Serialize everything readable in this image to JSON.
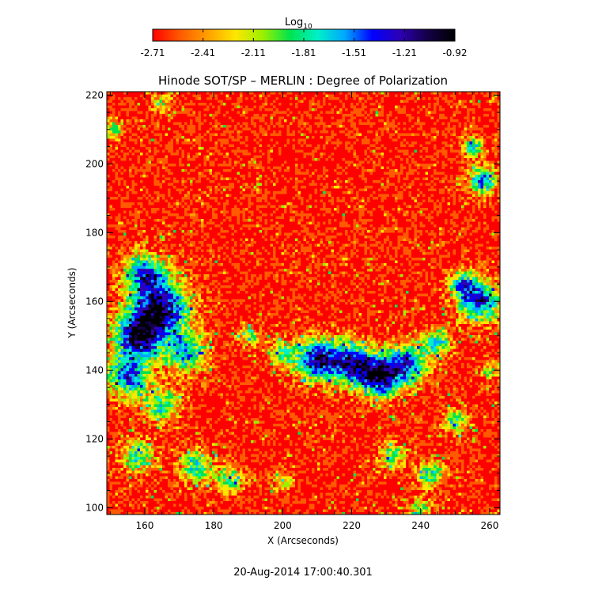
{
  "chart_data": {
    "type": "heatmap",
    "title": "Hinode SOT/SP – MERLIN : Degree of Polarization",
    "xlabel": "X (Arcseconds)",
    "ylabel": "Y (Arcseconds)",
    "xlim": [
      149,
      263
    ],
    "ylim": [
      98,
      221
    ],
    "x_ticks": [
      "160",
      "180",
      "200",
      "220",
      "240",
      "260"
    ],
    "y_ticks": [
      "100",
      "120",
      "140",
      "160",
      "180",
      "200",
      "220"
    ],
    "colorbar": {
      "title_base": "Log",
      "title_sub": "10",
      "min": -2.71,
      "max": -0.92,
      "tick_labels": [
        "-2.71",
        "-2.41",
        "-2.11",
        "-1.81",
        "-1.51",
        "-1.21",
        "-0.92"
      ],
      "colormap": [
        "#ff0000",
        "#ff5a00",
        "#ff9f00",
        "#ffe600",
        "#9cf000",
        "#00e34e",
        "#00f0c8",
        "#00a6ff",
        "#0000ff",
        "#2d00b5",
        "#140046",
        "#000000"
      ]
    },
    "timestamp": "20-Aug-2014 17:00:40.301"
  }
}
